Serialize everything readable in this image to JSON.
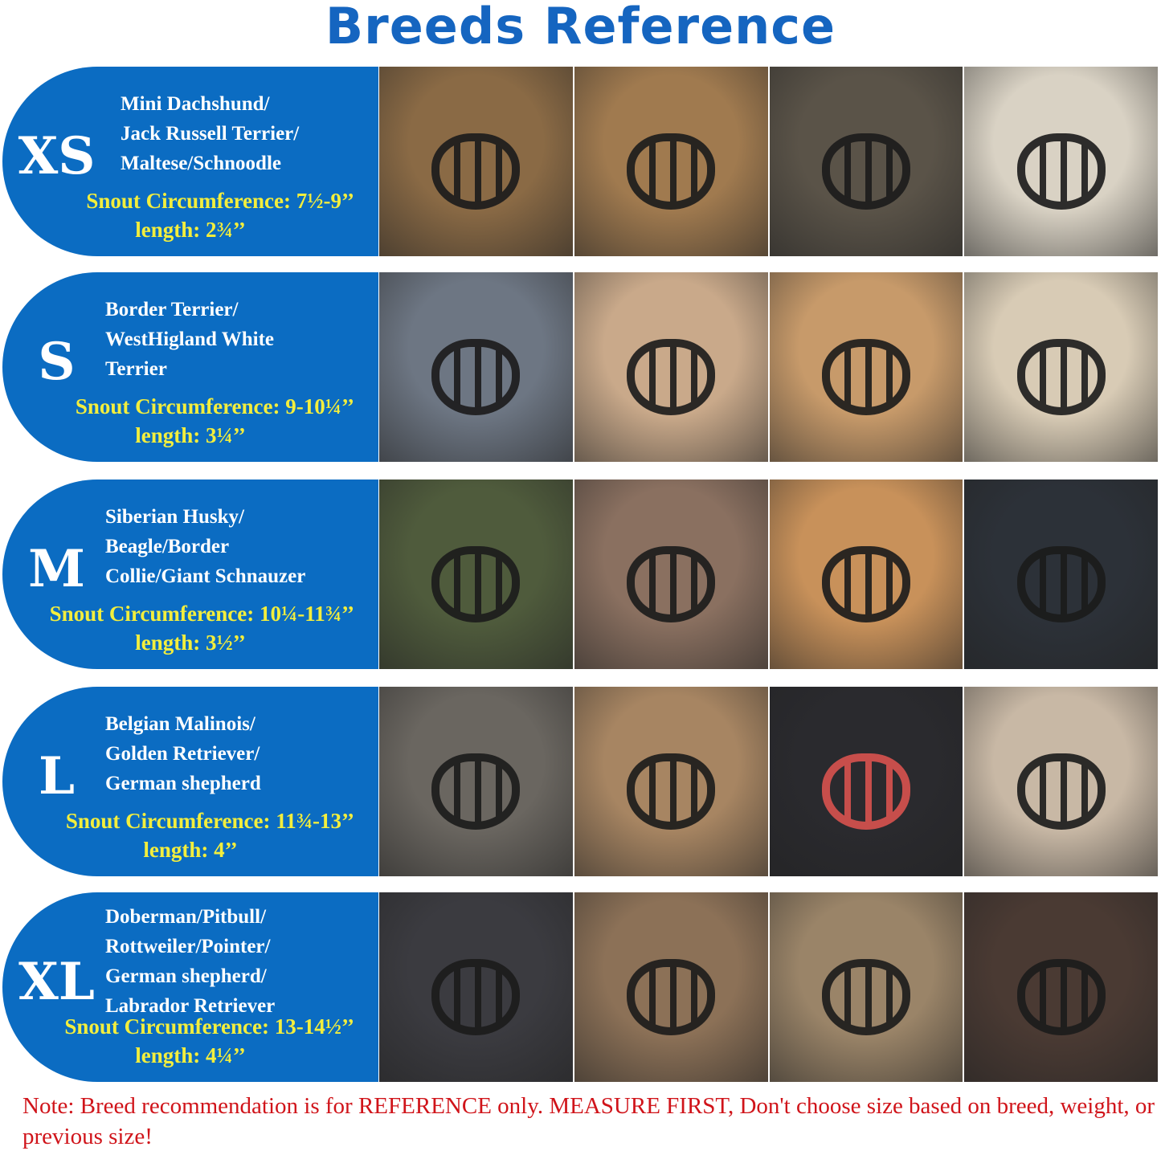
{
  "title": "Breeds Reference",
  "accent_blue": "#0b6cc2",
  "highlight_yellow": "#f3ee3d",
  "note_red": "#d0141a",
  "sizes": [
    {
      "size": "XS",
      "breeds": [
        "Mini Dachshund/",
        "Jack Russell Terrier/",
        "Maltese/Schnoodle"
      ],
      "snout": "Snout Circumference: 7½-9’’",
      "length": "length: 2¾’’",
      "photos": [
        "#8a6a45",
        "#a07a4f",
        "#5a5348",
        "#d9d2c4"
      ]
    },
    {
      "size": "S",
      "breeds": [
        "Border Terrier/",
        "WestHigland White",
        "Terrier"
      ],
      "snout": "Snout Circumference: 9-10¼’’",
      "length": "length: 3¼’’",
      "photos": [
        "#6d7683",
        "#c9a98a",
        "#c79a6a",
        "#d8cbb5"
      ]
    },
    {
      "size": "M",
      "breeds": [
        "Siberian Husky/",
        "Beagle/Border",
        "Collie/Giant Schnauzer"
      ],
      "snout": "Snout Circumference: 10¼-11¾’’",
      "length": "length: 3½’’",
      "photos": [
        "#4f5b3c",
        "#8a7060",
        "#c8915a",
        "#2c3138"
      ]
    },
    {
      "size": "L",
      "breeds": [
        "Belgian Malinois/",
        "Golden Retriever/",
        "German shepherd"
      ],
      "snout": "Snout Circumference: 11¾-13’’",
      "length": "length: 4’’",
      "photos": [
        "#6a6660",
        "#a78562",
        "#2a2a2e",
        "#c8b8a5"
      ]
    },
    {
      "size": "XL",
      "breeds": [
        "Doberman/Pitbull/",
        "Rottweiler/Pointer/",
        "German shepherd/",
        "Labrador Retriever"
      ],
      "snout": "Snout Circumference: 13-14½’’",
      "length": "length: 4¼’’",
      "photos": [
        "#3b3b40",
        "#8c7157",
        "#9a8468",
        "#4a3a33"
      ]
    }
  ],
  "note": "Note: Breed recommendation is for REFERENCE only. MEASURE FIRST, Don't choose size based on breed, weight, or previous size!"
}
